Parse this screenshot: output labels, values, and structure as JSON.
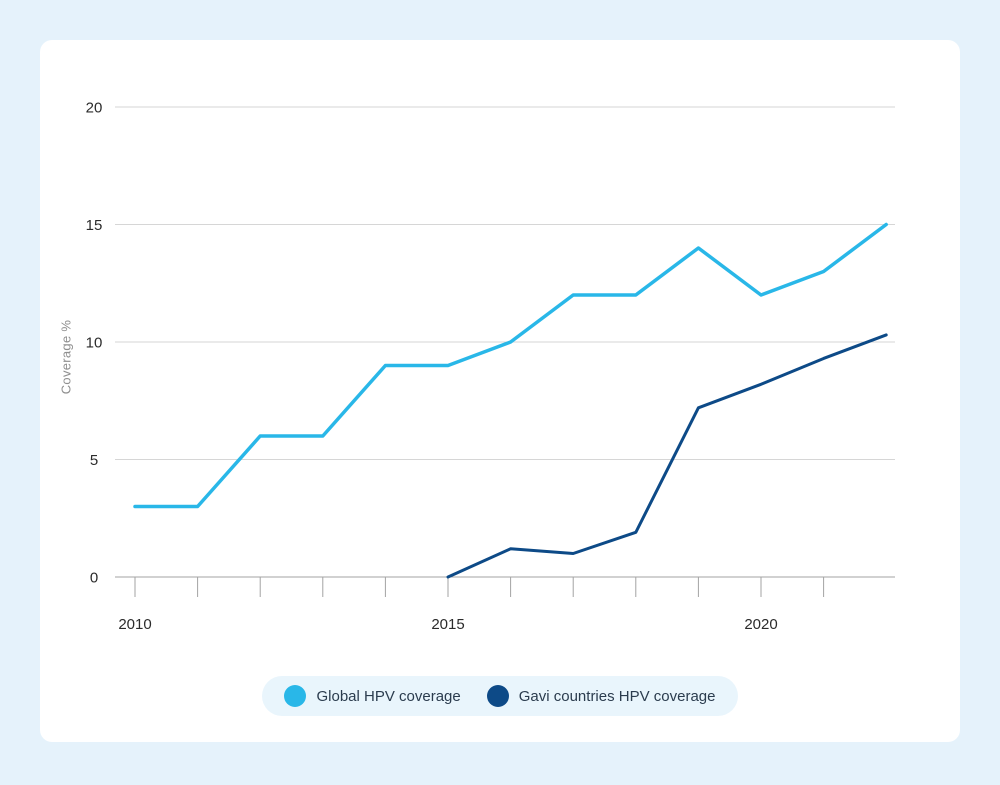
{
  "style": {
    "page_background": "#e5f2fb",
    "card_background": "#ffffff",
    "grid_color": "#d6d6d6",
    "axis_color": "#a3a3a3",
    "tick_label_color": "#2b2b2b",
    "axis_title_color": "#8f8f8f",
    "legend_background": "#e9f5fc",
    "legend_text_color": "#2b3c4e"
  },
  "chart_data": {
    "type": "line",
    "title": "",
    "xlabel": "",
    "ylabel": "Coverage %",
    "x": [
      2010,
      2011,
      2012,
      2013,
      2014,
      2015,
      2016,
      2017,
      2018,
      2019,
      2020,
      2021,
      2022
    ],
    "xlim": [
      2010,
      2022
    ],
    "ylim": [
      0,
      20
    ],
    "y_ticks": [
      0,
      5,
      10,
      15,
      20
    ],
    "x_ticks_years": [
      2010,
      2011,
      2012,
      2013,
      2014,
      2015,
      2016,
      2017,
      2018,
      2019,
      2020,
      2021
    ],
    "x_tick_labels": [
      {
        "year": 2010,
        "label": "2010"
      },
      {
        "year": 2015,
        "label": "2015"
      },
      {
        "year": 2020,
        "label": "2020"
      }
    ],
    "grid": "horizontal",
    "legend_position": "bottom",
    "series": [
      {
        "name": "Global HPV coverage",
        "color": "#29b7e8",
        "x_start": 2010,
        "values": [
          3,
          3,
          6,
          6,
          9,
          9,
          10,
          12,
          12,
          14,
          12,
          13,
          15
        ]
      },
      {
        "name": "Gavi countries HPV coverage",
        "color": "#0d4a87",
        "x_start": 2015,
        "values": [
          0,
          1.2,
          1,
          1.9,
          7.2,
          8.2,
          9.3,
          10.3
        ]
      }
    ]
  }
}
